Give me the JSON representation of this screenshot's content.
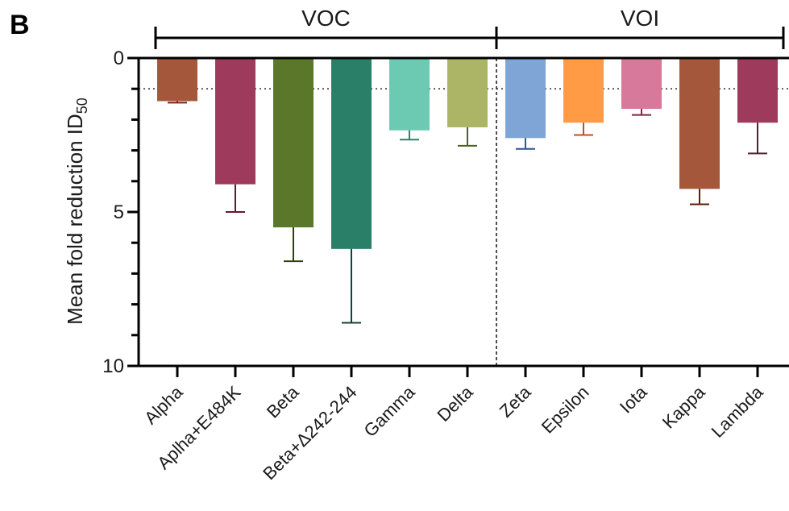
{
  "panel_label": "B",
  "chart_data": {
    "type": "bar",
    "title": "",
    "ylabel_main": "Mean fold reduction ID",
    "ylabel_sub": "50",
    "xlabel": "",
    "ylim": [
      0,
      10
    ],
    "y_inverted": true,
    "yticks": [
      0,
      5,
      10
    ],
    "reference_line": 1,
    "groups": [
      {
        "label": "VOC",
        "from": 0,
        "to": 5
      },
      {
        "label": "VOI",
        "from": 6,
        "to": 10
      }
    ],
    "categories": [
      "Alpha",
      "Aplha+E484K",
      "Beta",
      "Beta+Δ242-244",
      "Gamma",
      "Delta",
      "Zeta",
      "Epsilon",
      "Iota",
      "Kappa",
      "Lambda"
    ],
    "values": [
      1.4,
      4.1,
      5.5,
      6.2,
      2.35,
      2.25,
      2.6,
      2.1,
      1.65,
      4.25,
      2.1
    ],
    "errors": [
      0.05,
      0.9,
      1.1,
      2.4,
      0.3,
      0.6,
      0.35,
      0.4,
      0.2,
      0.5,
      1.0
    ],
    "colors": [
      "#A4573A",
      "#9E3A5C",
      "#5B782A",
      "#2A7F68",
      "#6CCAB3",
      "#ACB565",
      "#7FA4D6",
      "#FF9A45",
      "#D7799A",
      "#A4573A",
      "#9E3A5C"
    ],
    "error_colors": [
      "#6B2A15",
      "#5E1A33",
      "#2F4010",
      "#114338",
      "#2E8069",
      "#4E6020",
      "#2F5596",
      "#C04E25",
      "#7A2848",
      "#5E1E0C",
      "#5E1A33"
    ]
  }
}
